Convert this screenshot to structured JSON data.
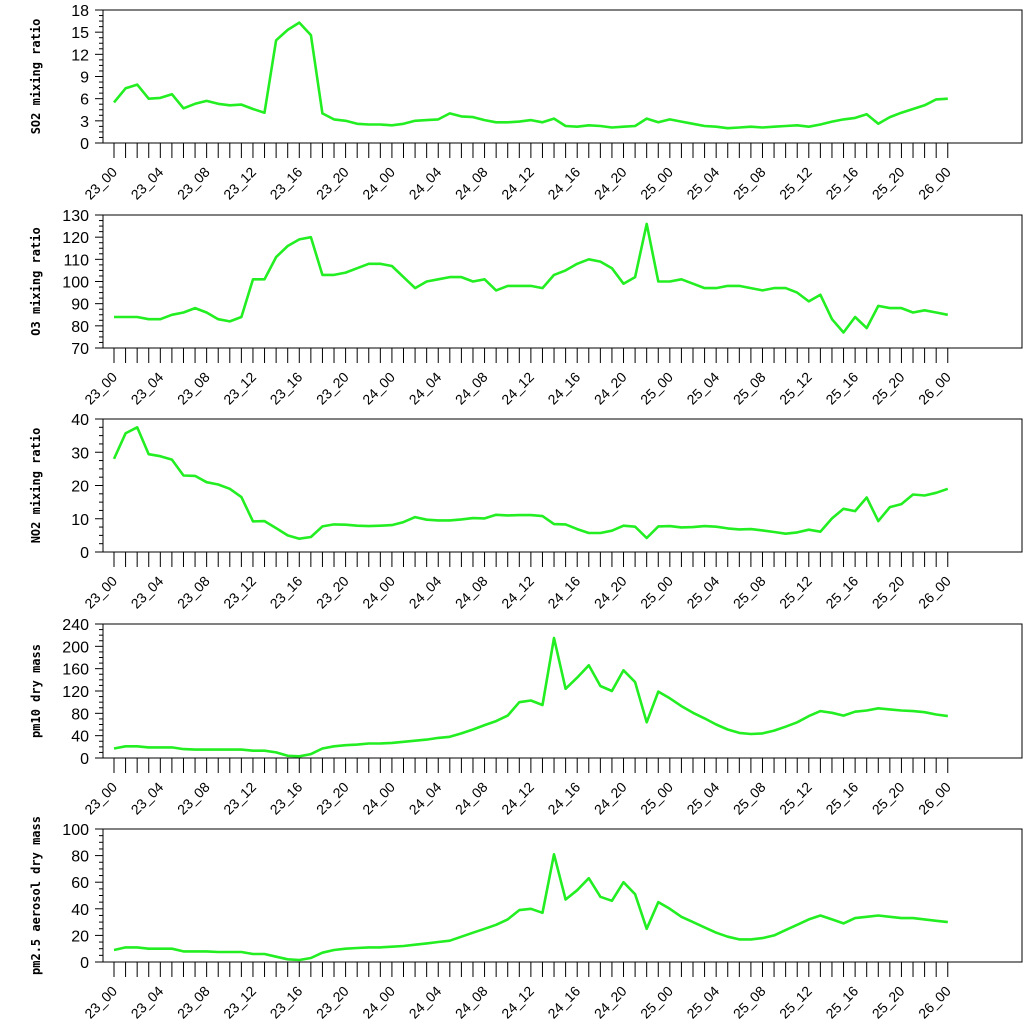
{
  "chart_data": [
    {
      "type": "line",
      "ylabel": "SO2 mixing ratio",
      "ylim": [
        0,
        18
      ],
      "yticks": [
        0,
        3,
        6,
        9,
        12,
        15,
        18
      ],
      "xticks": [
        "23_00",
        "23_04",
        "23_08",
        "23_12",
        "23_16",
        "23_20",
        "24_00",
        "24_04",
        "24_08",
        "24_12",
        "24_16",
        "24_20",
        "25_00",
        "25_04",
        "25_08",
        "25_12",
        "25_16",
        "25_20",
        "26_00"
      ],
      "color": "#22ee22",
      "values": [
        5.5,
        7.4,
        7.9,
        6.0,
        6.1,
        6.6,
        4.7,
        5.3,
        5.7,
        5.3,
        5.1,
        5.2,
        4.6,
        4.1,
        13.9,
        15.3,
        16.3,
        14.6,
        4.0,
        3.2,
        3.0,
        2.6,
        2.5,
        2.5,
        2.4,
        2.6,
        3.0,
        3.1,
        3.2,
        4.0,
        3.6,
        3.5,
        3.1,
        2.8,
        2.8,
        2.9,
        3.1,
        2.8,
        3.3,
        2.3,
        2.2,
        2.4,
        2.3,
        2.1,
        2.2,
        2.3,
        3.3,
        2.8,
        3.2,
        2.9,
        2.6,
        2.3,
        2.2,
        2.0,
        2.1,
        2.2,
        2.1,
        2.2,
        2.3,
        2.4,
        2.2,
        2.5,
        2.9,
        3.2,
        3.4,
        3.9,
        2.6,
        3.5,
        4.1,
        4.6,
        5.1,
        5.9,
        6.0
      ]
    },
    {
      "type": "line",
      "ylabel": "O3 mixing ratio",
      "ylim": [
        70,
        130
      ],
      "yticks": [
        70,
        80,
        90,
        100,
        110,
        120,
        130
      ],
      "xticks": [
        "23_00",
        "23_04",
        "23_08",
        "23_12",
        "23_16",
        "23_20",
        "24_00",
        "24_04",
        "24_08",
        "24_12",
        "24_16",
        "24_20",
        "25_00",
        "25_04",
        "25_08",
        "25_12",
        "25_16",
        "25_20",
        "26_00"
      ],
      "color": "#22ee22",
      "values": [
        84,
        84,
        84,
        83,
        83,
        85,
        86,
        88,
        86,
        83,
        82,
        84,
        101,
        101,
        111,
        116,
        119,
        120,
        103,
        103,
        104,
        106,
        108,
        108,
        107,
        102,
        97,
        100,
        101,
        102,
        102,
        100,
        101,
        96,
        98,
        98,
        98,
        97,
        103,
        105,
        108,
        110,
        109,
        106,
        99,
        102,
        126,
        100,
        100,
        101,
        99,
        97,
        97,
        98,
        98,
        97,
        96,
        97,
        97,
        95,
        91,
        94,
        83,
        77,
        84,
        79,
        89,
        88,
        88,
        86,
        87,
        86,
        85
      ]
    },
    {
      "type": "line",
      "ylabel": "NO2 mixing ratio",
      "ylim": [
        0,
        40
      ],
      "yticks": [
        0,
        10,
        20,
        30,
        40
      ],
      "xticks": [
        "23_00",
        "23_04",
        "23_08",
        "23_12",
        "23_16",
        "23_20",
        "24_00",
        "24_04",
        "24_08",
        "24_12",
        "24_16",
        "24_20",
        "25_00",
        "25_04",
        "25_08",
        "25_12",
        "25_16",
        "25_20",
        "26_00"
      ],
      "color": "#22ee22",
      "values": [
        28,
        35.7,
        37.5,
        29.4,
        28.8,
        27.8,
        23.0,
        22.9,
        21.0,
        20.3,
        19.0,
        16.5,
        9.2,
        9.3,
        7.2,
        5.0,
        4.0,
        4.5,
        7.7,
        8.3,
        8.2,
        7.9,
        7.8,
        7.9,
        8.1,
        9.0,
        10.5,
        9.7,
        9.5,
        9.5,
        9.8,
        10.2,
        10.1,
        11.2,
        11.0,
        11.1,
        11.1,
        10.8,
        8.4,
        8.3,
        6.9,
        5.7,
        5.7,
        6.4,
        7.9,
        7.6,
        4.2,
        7.7,
        7.8,
        7.4,
        7.5,
        7.8,
        7.6,
        7.1,
        6.8,
        6.9,
        6.5,
        6.0,
        5.5,
        5.9,
        6.7,
        6.1,
        10.1,
        13.0,
        12.3,
        16.4,
        9.3,
        13.5,
        14.4,
        17.3,
        17.0,
        17.8,
        19.0
      ]
    },
    {
      "type": "line",
      "ylabel": "pm10 dry mass",
      "ylim": [
        0,
        240
      ],
      "yticks": [
        0,
        40,
        80,
        120,
        160,
        200,
        240
      ],
      "xticks": [
        "23_00",
        "23_04",
        "23_08",
        "23_12",
        "23_16",
        "23_20",
        "24_00",
        "24_04",
        "24_08",
        "24_12",
        "24_16",
        "24_20",
        "25_00",
        "25_04",
        "25_08",
        "25_12",
        "25_16",
        "25_20",
        "26_00"
      ],
      "color": "#22ee22",
      "values": [
        17,
        21,
        21,
        19,
        19,
        19,
        16,
        15,
        15,
        15,
        15,
        15,
        13,
        13,
        10,
        4,
        3,
        7,
        17,
        21,
        23,
        24,
        26,
        26,
        27,
        29,
        31,
        33,
        36,
        38,
        44,
        51,
        59,
        66,
        76,
        100,
        103,
        95,
        215,
        124,
        144,
        166,
        129,
        120,
        157,
        136,
        64,
        119,
        107,
        93,
        81,
        71,
        60,
        51,
        45,
        43,
        44,
        49,
        56,
        64,
        75,
        84,
        81,
        76,
        83,
        85,
        89,
        87,
        85,
        84,
        82,
        78,
        75
      ]
    },
    {
      "type": "line",
      "ylabel": "pm2.5 aerosol dry mass",
      "ylim": [
        0,
        100
      ],
      "yticks": [
        0,
        20,
        40,
        60,
        80,
        100
      ],
      "xticks": [
        "23_00",
        "23_04",
        "23_08",
        "23_12",
        "23_16",
        "23_20",
        "24_00",
        "24_04",
        "24_08",
        "24_12",
        "24_16",
        "24_20",
        "25_00",
        "25_04",
        "25_08",
        "25_12",
        "25_16",
        "25_20",
        "26_00"
      ],
      "color": "#22ee22",
      "values": [
        9,
        11,
        11,
        10,
        10,
        10,
        8,
        8,
        8,
        7.5,
        7.5,
        7.5,
        6,
        6,
        4,
        2,
        1.5,
        3,
        7,
        9,
        10,
        10.5,
        11,
        11,
        11.5,
        12,
        13,
        14,
        15,
        16,
        19,
        22,
        25,
        28,
        32,
        39,
        40,
        37,
        81,
        47,
        54,
        63,
        49,
        46,
        60,
        51,
        25,
        45,
        40,
        34,
        30,
        26,
        22,
        19,
        17,
        17,
        18,
        20,
        24,
        28,
        32,
        35,
        32,
        29,
        33,
        34,
        35,
        34,
        33,
        33,
        32,
        31,
        30
      ]
    }
  ]
}
